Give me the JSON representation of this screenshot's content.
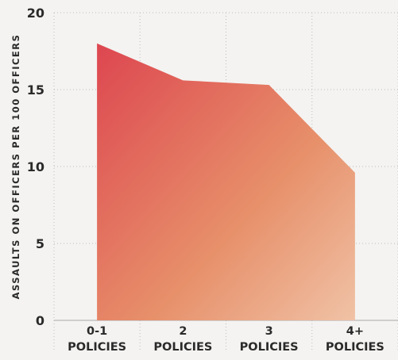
{
  "chart_data": {
    "type": "area",
    "title": "",
    "xlabel": "",
    "ylabel": "ASSAULTS ON OFFICERS PER 100 OFFICERS",
    "categories": [
      [
        "0-1",
        "POLICIES"
      ],
      [
        "2",
        "POLICIES"
      ],
      [
        "3",
        "POLICIES"
      ],
      [
        "4+",
        "POLICIES"
      ]
    ],
    "values": [
      18.0,
      15.6,
      15.3,
      9.6
    ],
    "ylim": [
      0,
      20
    ],
    "yticks": [
      0,
      5,
      10,
      15,
      20
    ],
    "grid": true,
    "colors": {
      "fill_top": "#dd4650",
      "fill_mid": "#e7906a",
      "fill_bottom": "#f0c2a6",
      "grid": "#bcbcbc",
      "background": "#f4f3f1"
    }
  }
}
